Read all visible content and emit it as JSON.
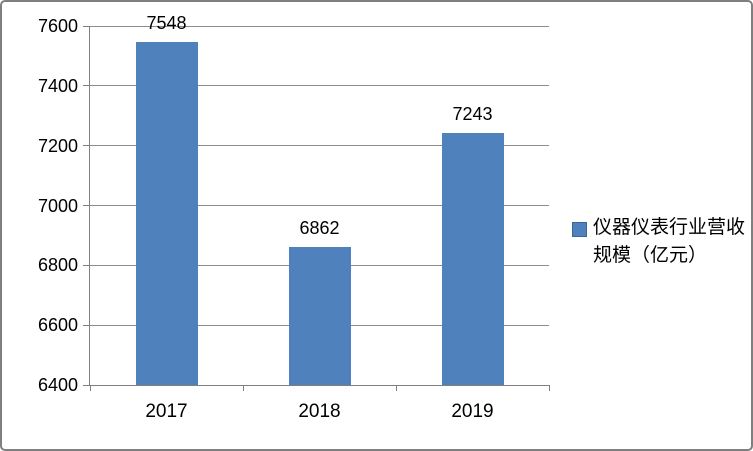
{
  "chart_data": {
    "type": "bar",
    "title": "",
    "xlabel": "",
    "ylabel": "",
    "categories": [
      "2017",
      "2018",
      "2019"
    ],
    "values": [
      7548,
      6862,
      7243
    ],
    "series_name": "仪器仪表行业营收规模（亿元）",
    "ylim": [
      6400,
      7600
    ],
    "ytick_step": 200,
    "yticks": [
      6400,
      6600,
      6800,
      7000,
      7200,
      7400,
      7600
    ],
    "grid": true,
    "data_labels": true,
    "legend_position": "right"
  },
  "colors": {
    "bar": "#4F81BD",
    "legend_border": "#3A6597",
    "grid": "#8C8C8C",
    "axis": "#7F7F7F",
    "text": "#000000",
    "frame": "#7F7F7F",
    "background": "#FFFFFF"
  }
}
